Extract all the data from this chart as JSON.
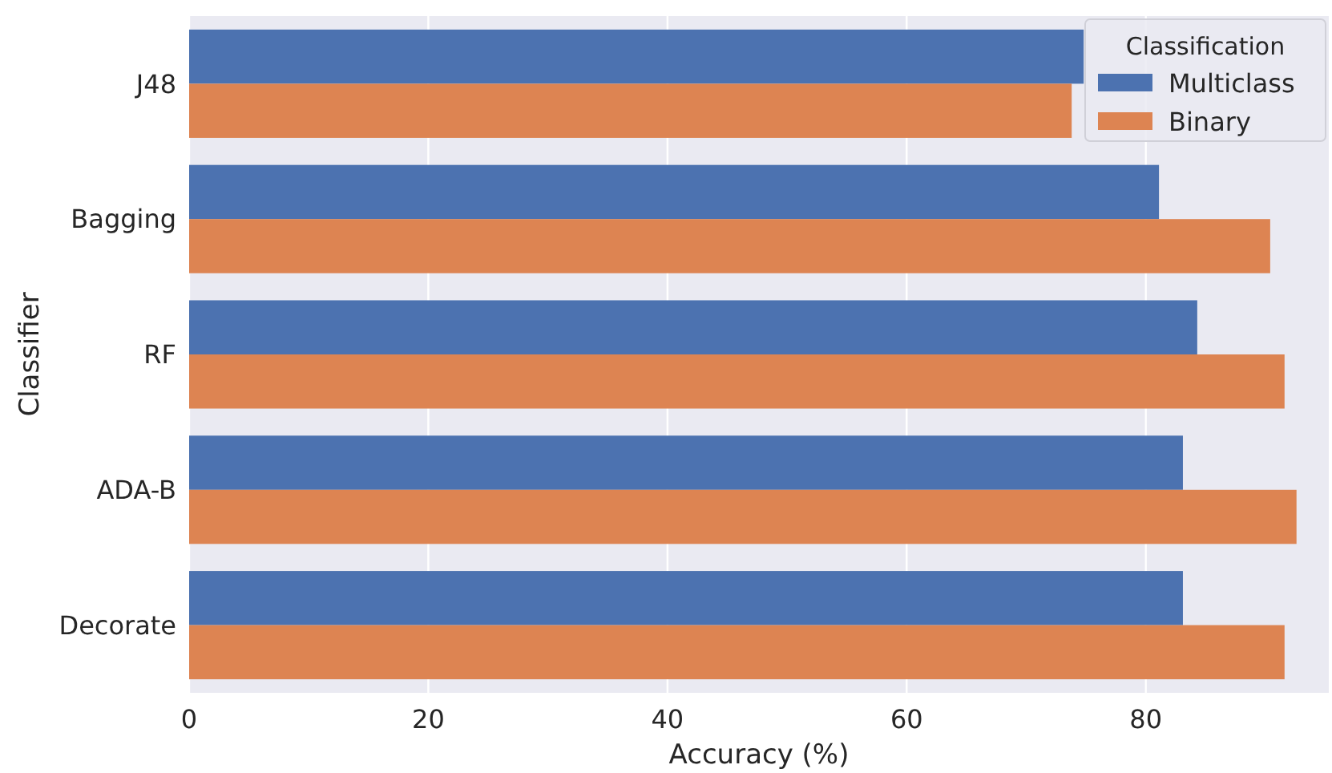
{
  "chart_data": {
    "type": "bar",
    "orientation": "horizontal",
    "categories": [
      "J48",
      "Bagging",
      "RF",
      "ADA-B",
      "Decorate"
    ],
    "series": [
      {
        "name": "Multiclass",
        "color": "#4c72b0",
        "values": [
          74.8,
          81.1,
          84.3,
          83.1,
          83.1
        ]
      },
      {
        "name": "Binary",
        "color": "#dd8452",
        "values": [
          73.8,
          90.4,
          91.6,
          92.6,
          91.6
        ]
      }
    ],
    "xlabel": "Accuracy (%)",
    "ylabel": "Classifier",
    "legend_title": "Classification",
    "legend": "top right",
    "xlim": [
      0,
      95.3
    ],
    "xticks": [
      0,
      20,
      40,
      60,
      80
    ],
    "grid": "x"
  }
}
